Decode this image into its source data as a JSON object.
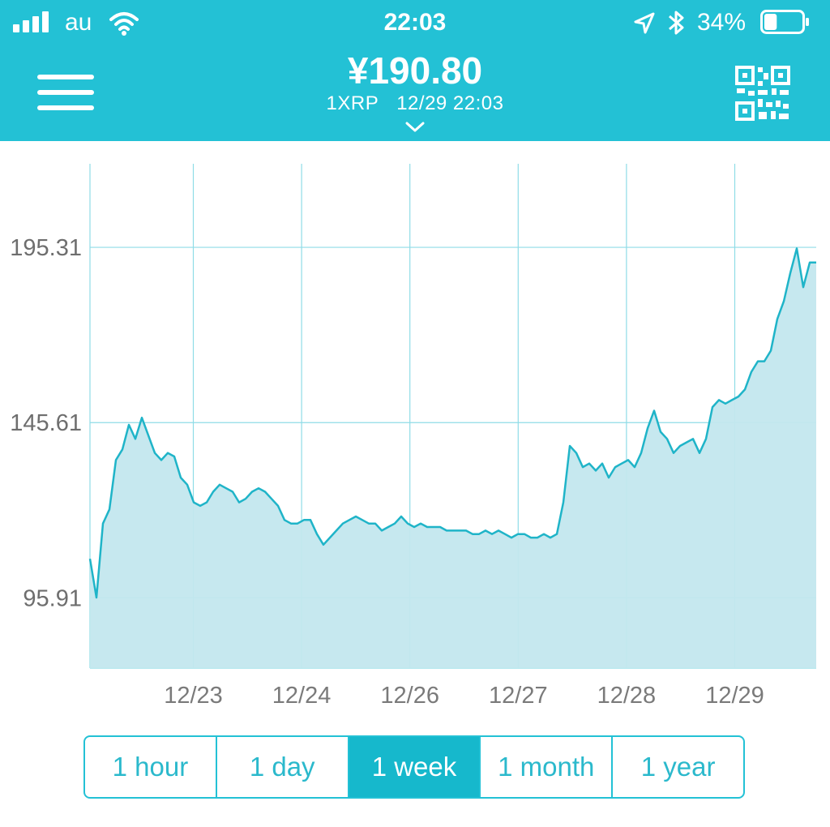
{
  "status_bar": {
    "carrier": "au",
    "time": "22:03",
    "battery_percent": "34%",
    "battery_level": 0.34
  },
  "header": {
    "price": "¥190.80",
    "unit": "1XRP",
    "timestamp": "12/29 22:03",
    "menu_icon": "hamburger-menu-icon",
    "qr_icon": "qr-code-icon",
    "dropdown_icon": "chevron-down-icon"
  },
  "colors": {
    "accent": "#23c1d5",
    "line": "#1fb4c8",
    "area_fill": "#c3e7ee",
    "active_button": "#16b8cc"
  },
  "chart_data": {
    "type": "area",
    "y_ticks": [
      "195.31",
      "145.61",
      "95.91"
    ],
    "y_tick_values": [
      195.31,
      145.61,
      95.91
    ],
    "x_ticks": [
      "12/23",
      "12/24",
      "12/26",
      "12/27",
      "12/28",
      "12/29"
    ],
    "ylim": [
      76.0,
      219.0
    ],
    "grid": true,
    "series": [
      {
        "values": [
          107,
          96,
          117,
          121,
          135,
          138,
          145,
          141,
          147,
          142,
          137,
          135,
          137,
          136,
          130,
          128,
          123,
          122,
          123,
          126,
          128,
          127,
          126,
          123,
          124,
          126,
          127,
          126,
          124,
          122,
          118,
          117,
          117,
          118,
          118,
          114,
          111,
          113,
          115,
          117,
          118,
          119,
          118,
          117,
          117,
          115,
          116,
          117,
          119,
          117,
          116,
          117,
          116,
          116,
          116,
          115,
          115,
          115,
          115,
          114,
          114,
          115,
          114,
          115,
          114,
          113,
          114,
          114,
          113,
          113,
          114,
          113,
          114,
          123,
          139,
          137,
          133,
          134,
          132,
          134,
          130,
          133,
          134,
          135,
          133,
          137,
          144,
          149,
          143,
          141,
          137,
          139,
          140,
          141,
          137,
          141,
          150,
          152,
          151,
          152,
          153,
          155,
          160,
          163,
          163,
          166,
          175,
          180,
          188,
          195,
          184,
          191,
          191
        ]
      }
    ]
  },
  "range_buttons": {
    "hour": "1 hour",
    "day": "1 day",
    "week": "1 week",
    "month": "1 month",
    "year": "1 year",
    "selected": "1 week"
  }
}
